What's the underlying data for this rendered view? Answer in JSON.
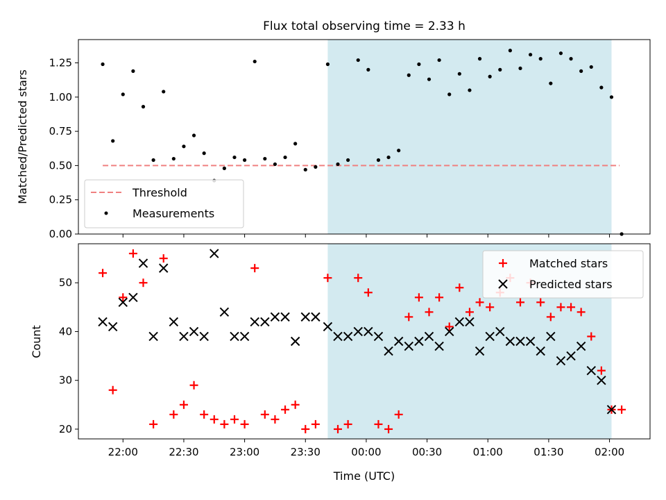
{
  "chart_data": [
    {
      "type": "scatter",
      "title": "Flux total observing time = 2.33 h",
      "ylabel": "Matched/Predicted stars",
      "xlabel": "",
      "ylim": [
        0,
        1.42
      ],
      "yticks": [
        "0.00",
        "0.25",
        "0.50",
        "0.75",
        "1.00",
        "1.25"
      ],
      "shaded_region": {
        "x_start": 101,
        "x_end": 241,
        "color": "#d3eaf0"
      },
      "threshold": {
        "name": "Threshold",
        "y": 0.5,
        "x_start": -10,
        "x_end": 245,
        "color": "#f08080"
      },
      "legend_position": "lower-left",
      "legend": [
        {
          "label": "Threshold",
          "marker": "dashed-line",
          "color": "#f08080"
        },
        {
          "label": "Measurements",
          "marker": "dot",
          "color": "#000000"
        }
      ],
      "series": [
        {
          "name": "Measurements",
          "color": "#000000",
          "x": [
            -10,
            -5,
            0,
            5,
            10,
            15,
            20,
            25,
            30,
            35,
            40,
            45,
            50,
            55,
            60,
            65,
            70,
            75,
            80,
            85,
            90,
            95,
            101,
            106,
            111,
            116,
            121,
            126,
            131,
            136,
            141,
            146,
            151,
            156,
            161,
            166,
            171,
            176,
            181,
            186,
            191,
            196,
            201,
            206,
            211,
            216,
            221,
            226,
            231,
            236,
            241,
            246
          ],
          "y": [
            1.24,
            0.68,
            1.02,
            1.19,
            0.93,
            0.54,
            1.04,
            0.55,
            0.64,
            0.72,
            0.59,
            0.39,
            0.48,
            0.56,
            0.54,
            1.26,
            0.55,
            0.51,
            0.56,
            0.66,
            0.47,
            0.49,
            1.24,
            0.51,
            0.54,
            1.27,
            1.2,
            0.54,
            0.56,
            0.61,
            1.16,
            1.24,
            1.13,
            1.27,
            1.02,
            1.17,
            1.05,
            1.28,
            1.15,
            1.2,
            1.34,
            1.21,
            1.31,
            1.28,
            1.1,
            1.32,
            1.28,
            1.19,
            1.22,
            1.07,
            1.0,
            0.0
          ]
        }
      ]
    },
    {
      "type": "scatter",
      "title": "",
      "xlabel": "Time (UTC)",
      "ylabel": "Count",
      "ylim": [
        18,
        58
      ],
      "yticks": [
        "20",
        "30",
        "40",
        "50"
      ],
      "xlim": [
        -22,
        260
      ],
      "xticks": [
        "22:00",
        "22:30",
        "23:00",
        "23:30",
        "00:00",
        "00:30",
        "01:00",
        "01:30",
        "02:00"
      ],
      "x_unit": "minutes after 22:00 UTC",
      "shaded_region": {
        "x_start": 101,
        "x_end": 241,
        "color": "#d3eaf0"
      },
      "legend_position": "top-right",
      "legend": [
        {
          "label": "Matched stars",
          "marker": "plus",
          "color": "#ff0000"
        },
        {
          "label": "Predicted stars",
          "marker": "x",
          "color": "#000000"
        }
      ],
      "series": [
        {
          "name": "Matched stars",
          "color": "#ff0000",
          "x": [
            -10,
            -5,
            0,
            5,
            10,
            15,
            20,
            25,
            30,
            35,
            40,
            45,
            50,
            55,
            60,
            65,
            70,
            75,
            80,
            85,
            90,
            95,
            101,
            106,
            111,
            116,
            121,
            126,
            131,
            136,
            141,
            146,
            151,
            156,
            161,
            166,
            171,
            176,
            181,
            186,
            191,
            196,
            201,
            206,
            211,
            216,
            221,
            226,
            231,
            236,
            241,
            246
          ],
          "y": [
            52,
            28,
            47,
            56,
            50,
            21,
            55,
            23,
            25,
            29,
            23,
            22,
            21,
            22,
            21,
            53,
            23,
            22,
            24,
            25,
            20,
            21,
            51,
            20,
            21,
            51,
            48,
            21,
            20,
            23,
            43,
            47,
            44,
            47,
            41,
            49,
            44,
            46,
            45,
            48,
            51,
            46,
            50,
            46,
            43,
            45,
            45,
            44,
            39,
            32,
            24,
            24
          ]
        },
        {
          "name": "Predicted stars",
          "color": "#000000",
          "x": [
            -10,
            -5,
            0,
            5,
            10,
            15,
            20,
            25,
            30,
            35,
            40,
            45,
            50,
            55,
            60,
            65,
            70,
            75,
            80,
            85,
            90,
            95,
            101,
            106,
            111,
            116,
            121,
            126,
            131,
            136,
            141,
            146,
            151,
            156,
            161,
            166,
            171,
            176,
            181,
            186,
            191,
            196,
            201,
            206,
            211,
            216,
            221,
            226,
            231,
            236,
            241
          ],
          "y": [
            42,
            41,
            46,
            47,
            54,
            39,
            53,
            42,
            39,
            40,
            39,
            56,
            44,
            39,
            39,
            42,
            42,
            43,
            43,
            38,
            43,
            43,
            41,
            39,
            39,
            40,
            40,
            39,
            36,
            38,
            37,
            38,
            39,
            37,
            40,
            42,
            42,
            36,
            39,
            40,
            38,
            38,
            38,
            36,
            39,
            34,
            35,
            37,
            32,
            30,
            24
          ]
        }
      ]
    }
  ]
}
